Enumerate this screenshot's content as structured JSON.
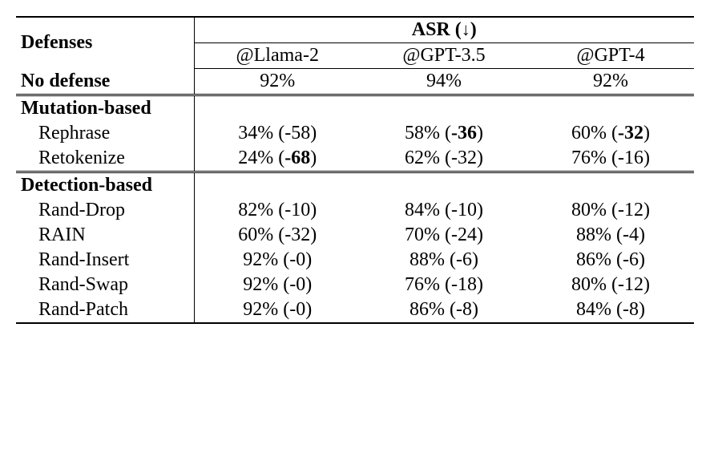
{
  "type": "table",
  "colors": {
    "background": "#ffffff",
    "text": "#000000",
    "border": "#000000"
  },
  "typography": {
    "font_family": "Times New Roman",
    "base_fontsize": 24,
    "header_weight": "bold"
  },
  "header": {
    "defenses": "Defenses",
    "asr_label": "ASR (",
    "asr_arrow": "↓",
    "asr_close": ")",
    "models": [
      "@Llama-2",
      "@GPT-3.5",
      "@GPT-4"
    ]
  },
  "no_defense": {
    "label": "No defense",
    "values": [
      "92%",
      "94%",
      "92%"
    ]
  },
  "mutation": {
    "section": "Mutation-based",
    "rows": [
      {
        "name": "Rephrase",
        "cells": [
          {
            "val": "34% (-58)",
            "bold_delta": false
          },
          {
            "val_pre": "58% (",
            "delta": "-36",
            "val_post": ")"
          },
          {
            "val_pre": "60% (",
            "delta": "-32",
            "val_post": ")"
          }
        ]
      },
      {
        "name": "Retokenize",
        "cells": [
          {
            "val_pre": "24% (",
            "delta": "-68",
            "val_post": ")"
          },
          {
            "val": "62% (-32)"
          },
          {
            "val": "76% (-16)"
          }
        ]
      }
    ]
  },
  "detection": {
    "section": "Detection-based",
    "rows": [
      {
        "name": "Rand-Drop",
        "cells": [
          "82% (-10)",
          "84% (-10)",
          "80% (-12)"
        ]
      },
      {
        "name": "RAIN",
        "cells": [
          "60% (-32)",
          "70% (-24)",
          "88% (-4)"
        ]
      },
      {
        "name": "Rand-Insert",
        "cells": [
          "92% (-0)",
          "88% (-6)",
          "86% (-6)"
        ]
      },
      {
        "name": "Rand-Swap",
        "cells": [
          "92% (-0)",
          "76% (-18)",
          "80% (-12)"
        ]
      },
      {
        "name": "Rand-Patch",
        "cells": [
          "92% (-0)",
          "86% (-8)",
          "84% (-8)"
        ]
      }
    ]
  }
}
